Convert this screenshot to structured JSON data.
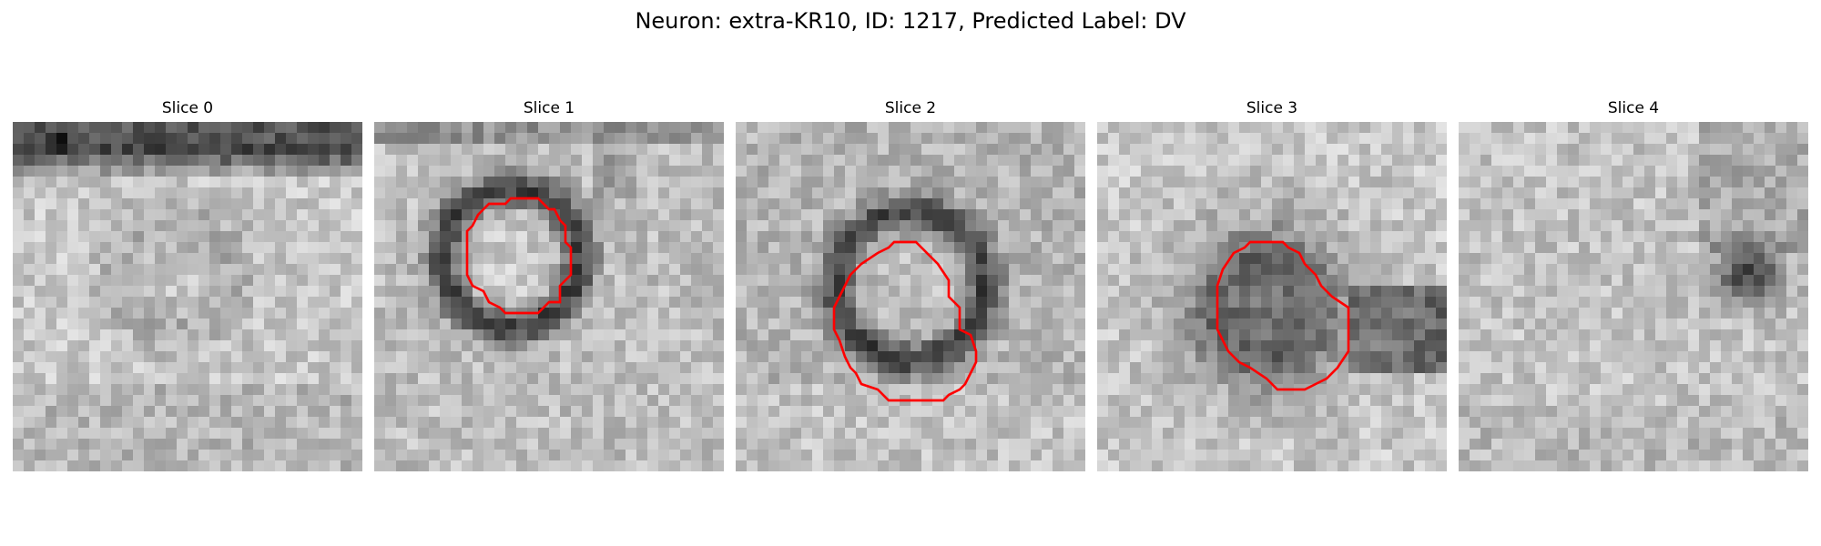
{
  "figure": {
    "title": "Neuron: extra-KR10, ID: 1217, Predicted Label: DV"
  },
  "panels": [
    {
      "title": "Slice 0"
    },
    {
      "title": "Slice 1"
    },
    {
      "title": "Slice 2"
    },
    {
      "title": "Slice 3"
    },
    {
      "title": "Slice 4"
    }
  ],
  "colors": {
    "contour": "#ff0000",
    "colormap": "gray"
  }
}
